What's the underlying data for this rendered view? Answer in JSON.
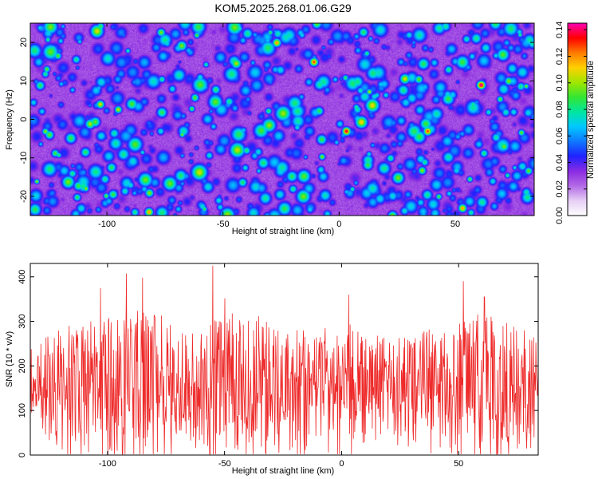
{
  "chart_data": [
    {
      "type": "heatmap",
      "title": "KOM5.2025.268.01.06.G29",
      "xlabel": "Height of straight line (km)",
      "ylabel": "Frequency (Hz)",
      "xlim": [
        -133,
        84
      ],
      "ylim": [
        -25,
        25
      ],
      "x_ticks": [
        -100,
        -50,
        0,
        50
      ],
      "y_ticks": [
        -20,
        -10,
        0,
        10,
        20
      ],
      "colorbar": {
        "label": "Normalized spectral amplitude",
        "range": [
          0,
          0.145
        ],
        "ticks": [
          0.0,
          0.02,
          0.04,
          0.06,
          0.08,
          0.1,
          0.12,
          0.14
        ],
        "tick_labels": [
          "0.00",
          "0.02",
          "0.04",
          "0.06",
          "0.08",
          "0.10",
          "0.12",
          "0.14"
        ],
        "colors": [
          "#ffffff",
          "#e6cff5",
          "#b36ae6",
          "#8a2be2",
          "#1f22ff",
          "#0f78ff",
          "#00c8ff",
          "#00e6a0",
          "#33e633",
          "#a0e600",
          "#ffd000",
          "#ff7a00",
          "#ff0000",
          "#ff00b4"
        ]
      },
      "background_level": 0.02,
      "peaks": [
        {
          "x": -103,
          "y": 4,
          "v": 0.1
        },
        {
          "x": -82,
          "y": -24,
          "v": 0.11
        },
        {
          "x": -77,
          "y": -3,
          "v": 0.06
        },
        {
          "x": -72,
          "y": 8,
          "v": 0.06
        },
        {
          "x": -60,
          "y": 11,
          "v": 0.06
        },
        {
          "x": -52,
          "y": -21,
          "v": 0.06
        },
        {
          "x": -27,
          "y": 20,
          "v": 0.11
        },
        {
          "x": -11,
          "y": 15,
          "v": 0.12
        },
        {
          "x": 3,
          "y": -3,
          "v": 0.13
        },
        {
          "x": 38,
          "y": -3,
          "v": 0.12
        },
        {
          "x": 53,
          "y": -23,
          "v": 0.11
        },
        {
          "x": 61,
          "y": 9,
          "v": 0.14
        },
        {
          "x": -115,
          "y": -14,
          "v": 0.07
        },
        {
          "x": -90,
          "y": -17,
          "v": 0.06
        },
        {
          "x": -40,
          "y": -8,
          "v": 0.07
        },
        {
          "x": -20,
          "y": -18,
          "v": 0.07
        },
        {
          "x": 15,
          "y": 6,
          "v": 0.06
        },
        {
          "x": 22,
          "y": -10,
          "v": 0.07
        },
        {
          "x": 47,
          "y": 13,
          "v": 0.07
        },
        {
          "x": 66,
          "y": -16,
          "v": 0.06
        },
        {
          "x": -125,
          "y": 18,
          "v": 0.05
        },
        {
          "x": -65,
          "y": 18,
          "v": 0.05
        },
        {
          "x": 30,
          "y": 22,
          "v": 0.06
        },
        {
          "x": 75,
          "y": 2,
          "v": 0.06
        },
        {
          "x": -8,
          "y": -13,
          "v": 0.06
        },
        {
          "x": 8,
          "y": 18,
          "v": 0.05
        },
        {
          "x": -45,
          "y": 3,
          "v": 0.05
        },
        {
          "x": 72,
          "y": 20,
          "v": 0.05
        }
      ]
    },
    {
      "type": "line",
      "xlabel": "Height of straight line (km)",
      "ylabel": "SNR (10 * v/v)",
      "xlim": [
        -133,
        84
      ],
      "ylim": [
        0,
        430
      ],
      "x_ticks": [
        -100,
        -50,
        0,
        50
      ],
      "y_ticks": [
        0,
        100,
        200,
        300,
        400
      ],
      "series": [
        {
          "name": "SNR",
          "color": "#ee2a2a",
          "x_start": -133,
          "x_end": 84,
          "num_points": 1100,
          "mean": 140,
          "envelope_x": [
            -133,
            -120,
            -100,
            -85,
            -75,
            -60,
            -50,
            -30,
            -10,
            0,
            20,
            40,
            55,
            70,
            84
          ],
          "envelope_max": [
            280,
            330,
            380,
            405,
            360,
            320,
            425,
            340,
            330,
            360,
            300,
            330,
            390,
            360,
            310
          ],
          "notable_peaks": [
            {
              "x": -55,
              "y": 425
            },
            {
              "x": -92,
              "y": 407
            },
            {
              "x": -85,
              "y": 398
            },
            {
              "x": 52,
              "y": 390
            },
            {
              "x": -103,
              "y": 375
            },
            {
              "x": 3,
              "y": 360
            },
            {
              "x": 61,
              "y": 355
            }
          ]
        }
      ]
    }
  ]
}
